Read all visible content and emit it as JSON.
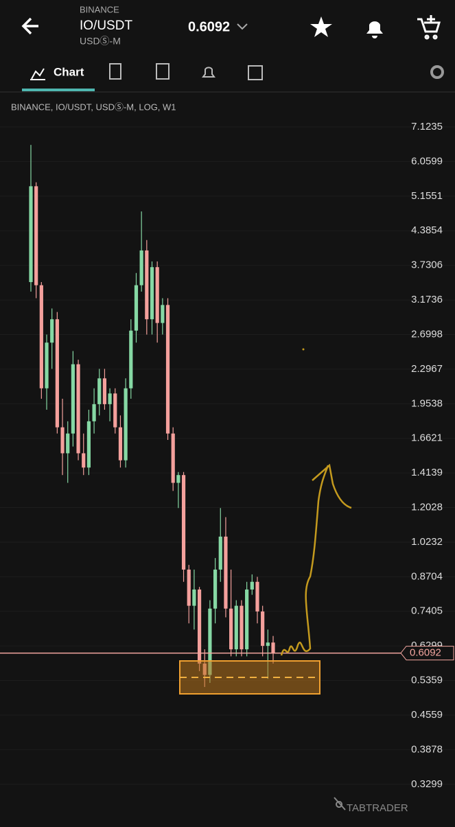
{
  "header": {
    "exchange": "BINANCE",
    "pair": "IO/USDT",
    "market": "USDⓈ-M",
    "price": "0.6092"
  },
  "tabs": {
    "chart": "Chart"
  },
  "chart_data": {
    "type": "candlestick",
    "title": "BINANCE, IO/USDT, USDⓈ-M, LOG, W1",
    "log_scale": true,
    "grid": true,
    "up_color": "#86d8a4",
    "down_color": "#f4a09c",
    "ylim": [
      0.2746,
      8.363
    ],
    "yticks": [
      7.1235,
      6.0599,
      5.1551,
      4.3854,
      3.7306,
      3.1736,
      2.6998,
      2.2967,
      1.9538,
      1.6621,
      1.4139,
      1.2028,
      1.0232,
      0.8704,
      0.7405,
      0.6299,
      0.5359,
      0.4559,
      0.3878,
      0.3299
    ],
    "last_price": 0.6092,
    "last_price_label": "0.6092",
    "open": [
      3.45,
      5.4,
      3.4,
      2.1,
      2.6,
      2.9,
      1.75,
      1.55,
      1.7,
      2.35,
      1.55,
      1.45,
      1.8,
      1.95,
      2.2,
      1.95,
      2.05,
      1.75,
      1.5,
      2.1,
      2.75,
      3.4,
      4.0,
      2.9,
      3.7,
      2.85,
      3.1,
      1.7,
      1.35,
      1.4,
      0.9,
      0.76,
      0.82,
      0.58,
      0.55,
      0.75,
      0.9,
      1.05,
      0.75,
      0.62,
      0.76,
      0.62,
      0.82,
      0.85,
      0.74,
      0.63,
      0.64
    ],
    "high": [
      6.55,
      5.5,
      3.45,
      2.7,
      3.05,
      3.0,
      2.0,
      1.8,
      2.5,
      2.4,
      1.7,
      1.9,
      2.1,
      2.3,
      2.3,
      2.1,
      2.1,
      1.85,
      2.2,
      2.9,
      3.6,
      4.8,
      4.2,
      3.8,
      3.8,
      3.2,
      3.2,
      1.75,
      1.42,
      1.42,
      0.92,
      0.9,
      0.83,
      0.62,
      0.78,
      0.95,
      1.2,
      1.15,
      0.9,
      0.78,
      0.78,
      0.85,
      0.88,
      0.87,
      0.76,
      0.68,
      0.66
    ],
    "low": [
      3.3,
      3.2,
      2.0,
      1.9,
      2.3,
      1.7,
      1.4,
      1.35,
      1.6,
      1.5,
      1.4,
      1.4,
      1.7,
      1.85,
      1.9,
      1.8,
      1.7,
      1.45,
      1.45,
      2.0,
      2.6,
      3.3,
      2.7,
      2.7,
      2.6,
      2.7,
      1.65,
      1.3,
      1.2,
      0.85,
      0.7,
      0.68,
      0.56,
      0.52,
      0.53,
      0.7,
      0.85,
      0.72,
      0.6,
      0.6,
      0.6,
      0.6,
      0.8,
      0.7,
      0.6,
      0.54,
      0.58
    ],
    "close": [
      5.4,
      3.4,
      2.1,
      2.6,
      2.9,
      1.75,
      1.55,
      1.7,
      2.35,
      1.55,
      1.45,
      1.8,
      1.95,
      2.2,
      1.95,
      2.05,
      1.75,
      1.5,
      2.1,
      2.75,
      3.4,
      4.0,
      2.9,
      3.7,
      2.85,
      3.1,
      1.7,
      1.35,
      1.4,
      0.9,
      0.76,
      0.82,
      0.58,
      0.55,
      0.75,
      0.9,
      1.05,
      0.75,
      0.62,
      0.76,
      0.62,
      0.82,
      0.85,
      0.74,
      0.63,
      0.64,
      0.6092
    ]
  },
  "footer": {
    "brand": "TABTRADER"
  }
}
